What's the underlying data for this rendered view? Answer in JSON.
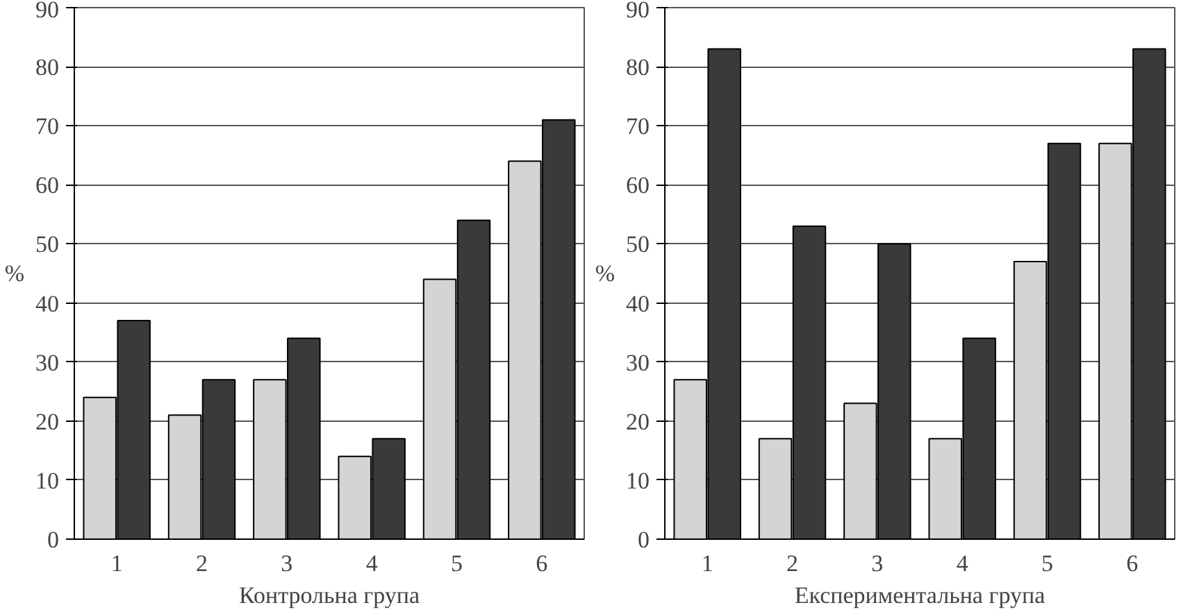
{
  "chart_data": [
    {
      "type": "bar",
      "xlabel": "Контрольна група",
      "ylabel": "%",
      "categories": [
        "1",
        "2",
        "3",
        "4",
        "5",
        "6"
      ],
      "series": [
        {
          "color": "#d4d4d4",
          "values": [
            24,
            21,
            27,
            14,
            44,
            64
          ]
        },
        {
          "color": "#3a3a3a",
          "values": [
            37,
            27,
            34,
            17,
            54,
            71
          ]
        }
      ],
      "ylim": [
        0,
        90
      ],
      "yticks": [
        0,
        10,
        20,
        30,
        40,
        50,
        60,
        70,
        80,
        90
      ],
      "grid": "y"
    },
    {
      "type": "bar",
      "xlabel": "Експериментальна група",
      "ylabel": "%",
      "categories": [
        "1",
        "2",
        "3",
        "4",
        "5",
        "6"
      ],
      "series": [
        {
          "color": "#d4d4d4",
          "values": [
            27,
            17,
            23,
            17,
            47,
            67
          ]
        },
        {
          "color": "#3a3a3a",
          "values": [
            83,
            53,
            50,
            34,
            67,
            83
          ]
        }
      ],
      "ylim": [
        0,
        90
      ],
      "yticks": [
        0,
        10,
        20,
        30,
        40,
        50,
        60,
        70,
        80,
        90
      ],
      "grid": "y"
    }
  ]
}
